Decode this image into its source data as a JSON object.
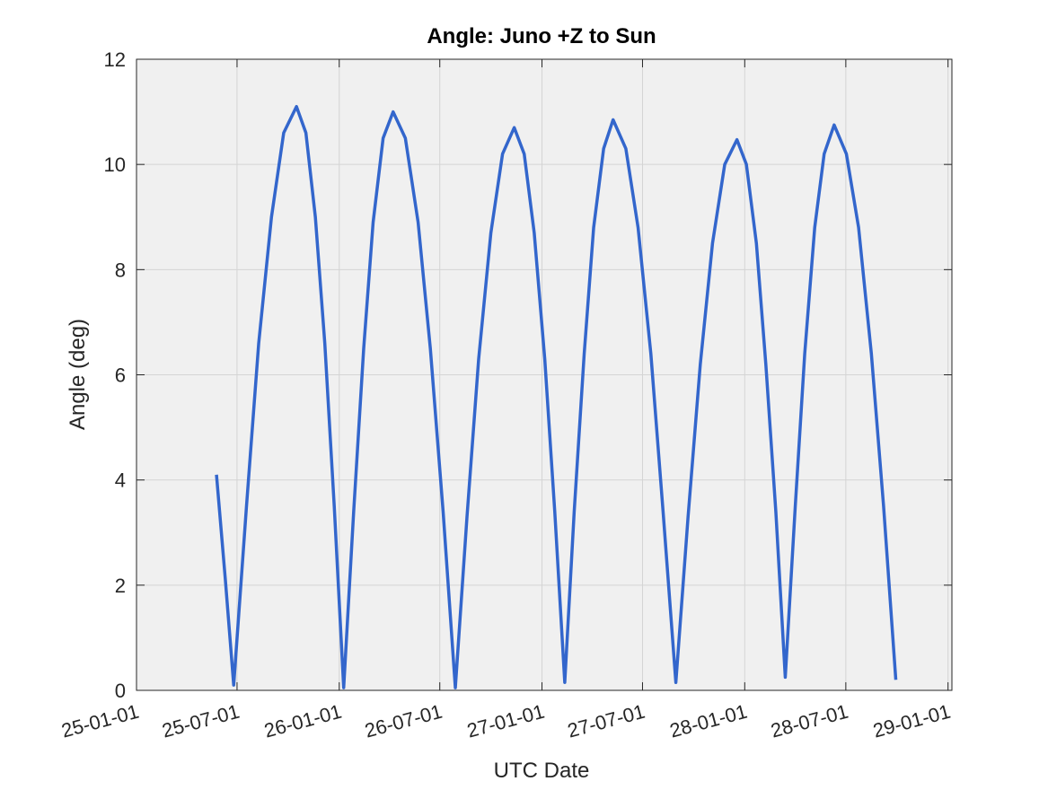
{
  "chart_data": {
    "type": "line",
    "title": "Angle: Juno +Z to Sun",
    "xlabel": "UTC Date",
    "ylabel": "Angle (deg)",
    "x": [
      "25-05-25",
      "25-06-10",
      "25-06-25",
      "25-07-18",
      "25-08-09",
      "25-09-01",
      "25-09-23",
      "25-10-16",
      "25-11-02",
      "25-11-19",
      "25-12-06",
      "25-12-23",
      "26-01-09",
      "26-01-27",
      "26-02-14",
      "26-03-03",
      "26-03-21",
      "26-04-08",
      "26-04-30",
      "26-05-23",
      "26-06-14",
      "26-07-07",
      "26-07-29",
      "26-08-19",
      "26-09-09",
      "26-10-01",
      "26-10-22",
      "26-11-12",
      "26-11-30",
      "26-12-18",
      "27-01-06",
      "27-01-24",
      "27-02-11",
      "27-02-28",
      "27-03-18",
      "27-04-04",
      "27-04-22",
      "27-05-09",
      "27-06-01",
      "27-06-23",
      "27-07-16",
      "27-08-07",
      "27-08-30",
      "27-09-21",
      "27-10-13",
      "27-11-04",
      "27-11-26",
      "27-12-18",
      "28-01-04",
      "28-01-22",
      "28-02-08",
      "28-02-26",
      "28-03-14",
      "28-04-01",
      "28-04-18",
      "28-05-06",
      "28-05-23",
      "28-06-10",
      "28-07-02",
      "28-07-24",
      "28-08-16",
      "28-09-07",
      "28-09-29"
    ],
    "series": [
      {
        "name": "Angle",
        "color": "#3366cc",
        "values": [
          4.1,
          2.1,
          0.1,
          3.5,
          6.6,
          9.0,
          10.6,
          11.1,
          10.6,
          9.0,
          6.6,
          3.5,
          0.05,
          3.4,
          6.5,
          8.9,
          10.5,
          11.0,
          10.5,
          8.9,
          6.5,
          3.4,
          0.05,
          3.3,
          6.3,
          8.7,
          10.2,
          10.7,
          10.2,
          8.7,
          6.3,
          3.4,
          0.15,
          3.4,
          6.4,
          8.8,
          10.3,
          10.85,
          10.3,
          8.8,
          6.4,
          3.4,
          0.15,
          3.3,
          6.2,
          8.5,
          10.0,
          10.47,
          10.0,
          8.5,
          6.2,
          3.4,
          0.25,
          3.5,
          6.4,
          8.8,
          10.2,
          10.75,
          10.2,
          8.8,
          6.4,
          3.5,
          0.2
        ]
      }
    ],
    "xlim": [
      "25-01-01",
      "29-01-08"
    ],
    "xticks": [
      "25-01-01",
      "25-07-01",
      "26-01-01",
      "26-07-01",
      "27-01-01",
      "27-07-01",
      "28-01-01",
      "28-07-01",
      "29-01-01"
    ],
    "ylim": [
      0,
      12
    ],
    "yticks": [
      0,
      2,
      4,
      6,
      8,
      10,
      12
    ],
    "grid": true
  }
}
